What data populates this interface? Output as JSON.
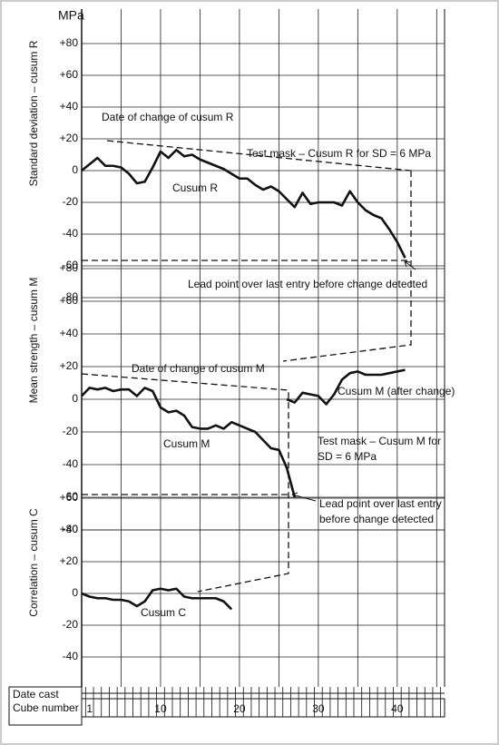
{
  "chart_data": [
    {
      "type": "line",
      "ylabel": "Standard deviation – cusum R",
      "unit": "MPa",
      "x": [
        0,
        1,
        2,
        3,
        4,
        5,
        6,
        7,
        8,
        9,
        10,
        11,
        12,
        13,
        14,
        15,
        16,
        17,
        18,
        19,
        20,
        21,
        22,
        23,
        24,
        25,
        26,
        27,
        28,
        29,
        30,
        31,
        32,
        33,
        34,
        35,
        36,
        37,
        38,
        39,
        40,
        41
      ],
      "xlim": [
        0,
        46
      ],
      "ylim": [
        -80,
        80
      ],
      "yticks": [
        {
          "value": 80,
          "label": "+80"
        },
        {
          "value": 60,
          "label": "+60"
        },
        {
          "value": 40,
          "label": "+40"
        },
        {
          "value": 20,
          "label": "+20"
        },
        0,
        -20,
        -40,
        -60,
        -80
      ],
      "series": [
        {
          "name": "Cusum R",
          "color": "#111111",
          "values": [
            0,
            4,
            8,
            3,
            3,
            2,
            -2,
            -8,
            -7,
            2,
            12,
            8,
            13,
            9,
            10,
            7,
            5,
            3,
            1,
            -2,
            -5,
            -5,
            -9,
            -12,
            -10,
            -13,
            -18,
            -23,
            -14,
            -21,
            -20,
            -20,
            -20,
            -22,
            -13,
            -20,
            -25,
            -28,
            -30,
            -37,
            -45,
            -55
          ]
        }
      ]
    },
    {
      "type": "line",
      "ylabel": "Mean strength – cusum M",
      "x": [
        0,
        1,
        2,
        3,
        4,
        5,
        6,
        7,
        8,
        9,
        10,
        11,
        12,
        13,
        14,
        15,
        16,
        17,
        18,
        19,
        20,
        21,
        22,
        23,
        24,
        25,
        26,
        27,
        28,
        29,
        30,
        31,
        32,
        33,
        34,
        35,
        36,
        37,
        38,
        39,
        40,
        41
      ],
      "xlim": [
        0,
        46
      ],
      "ylim": [
        -80,
        80
      ],
      "yticks": [
        {
          "value": 80,
          "label": "+80"
        },
        {
          "value": 60,
          "label": "+60"
        },
        {
          "value": 40,
          "label": "+40"
        },
        {
          "value": 20,
          "label": "+20"
        },
        0,
        -20,
        -40,
        -60,
        -80
      ],
      "series": [
        {
          "name": "Cusum M",
          "color": "#111111",
          "values": [
            2,
            7,
            6,
            7,
            5,
            6,
            6,
            2,
            7,
            5,
            -5,
            -8,
            -7,
            -10,
            -17,
            -18,
            -18,
            -16,
            -18,
            -14,
            -16,
            -18,
            -20,
            -25,
            -30,
            -31,
            -42,
            -60,
            null,
            null,
            null,
            null,
            null,
            null,
            null,
            null,
            null,
            null,
            null,
            null,
            null,
            null
          ]
        },
        {
          "name": "Cusum M (after change)",
          "color": "#111111",
          "values": [
            null,
            null,
            null,
            null,
            null,
            null,
            null,
            null,
            null,
            null,
            null,
            null,
            null,
            null,
            null,
            null,
            null,
            null,
            null,
            null,
            null,
            null,
            null,
            null,
            null,
            null,
            0,
            -2,
            4,
            3,
            2,
            -3,
            3,
            12,
            16,
            17,
            15,
            15,
            15,
            16,
            17,
            18
          ]
        }
      ]
    },
    {
      "type": "line",
      "ylabel": "Correlation – cusum C",
      "x": [
        0,
        1,
        2,
        3,
        4,
        5,
        6,
        7,
        8,
        9,
        10,
        11,
        12,
        13,
        14,
        15,
        16,
        17,
        18,
        19,
        20,
        21,
        22,
        23,
        24,
        25,
        26,
        27,
        28,
        29,
        30,
        31,
        32,
        33,
        34,
        35,
        36,
        37,
        38,
        39,
        40,
        41
      ],
      "xlim": [
        0,
        46
      ],
      "ylim": [
        -40,
        60
      ],
      "yticks": [
        {
          "value": 60,
          "label": "+60"
        },
        {
          "value": 40,
          "label": "+40"
        },
        {
          "value": 20,
          "label": "+20"
        },
        0,
        -20,
        -40
      ],
      "xticks": [
        1,
        10,
        20,
        30,
        40
      ],
      "row_labels": [
        "Date cast",
        "Cube number"
      ],
      "series": [
        {
          "name": "Cusum C",
          "color": "#111111",
          "values": [
            0,
            -2,
            -3,
            -3,
            -4,
            -4,
            -5,
            -8,
            -5,
            2,
            3,
            2,
            3,
            -2,
            -3,
            -3,
            -3,
            -3,
            -5,
            -10,
            null,
            null,
            null,
            null,
            null,
            null,
            null,
            null,
            null,
            null,
            null,
            null,
            null,
            null,
            null,
            null,
            null,
            null,
            null,
            null,
            null,
            null
          ]
        }
      ]
    }
  ],
  "annotations": [
    "Date of change of cusum R",
    "Test mask – Cusum R for SD = 6 MPa",
    "Lead point over last entry before change detected",
    "Date of change of cusum M",
    "Test mask – Cusum M for",
    "SD = 6 MPa",
    "Lead point over last entry",
    "before change detected"
  ]
}
